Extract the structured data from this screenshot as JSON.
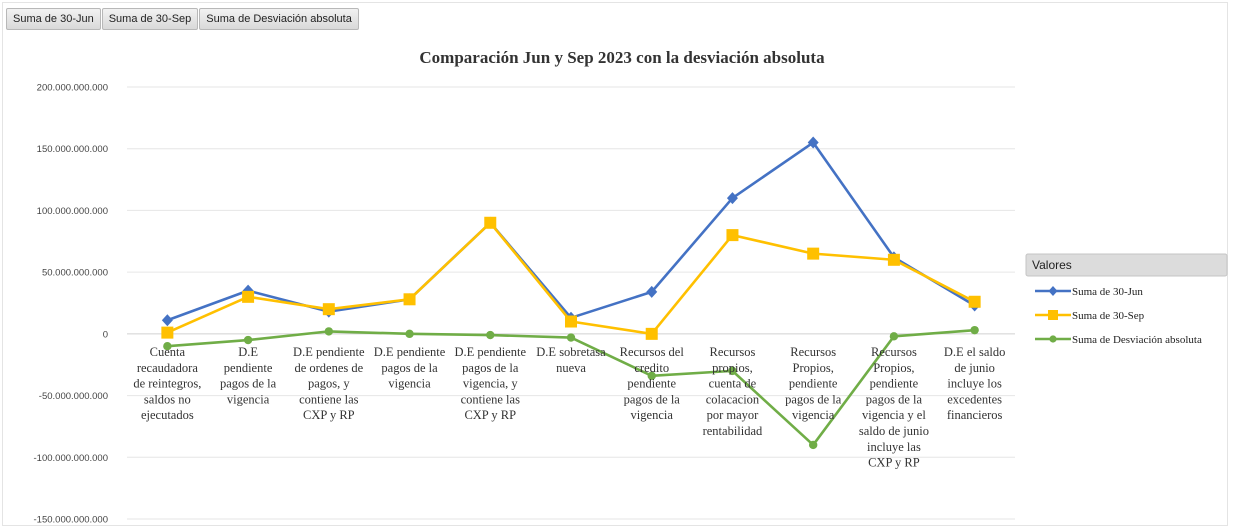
{
  "field_buttons": [
    {
      "label": "Suma de 30-Jun"
    },
    {
      "label": "Suma de 30-Sep"
    },
    {
      "label": "Suma de Desviación absoluta"
    }
  ],
  "chart_data": {
    "type": "line",
    "title": "Comparación  Jun y Sep  2023 con la desviación absoluta",
    "ylim": [
      -150000000000,
      200000000000
    ],
    "yticks": [
      {
        "value": 200000000000,
        "label": "200.000.000.000"
      },
      {
        "value": 150000000000,
        "label": "150.000.000.000"
      },
      {
        "value": 100000000000,
        "label": "100.000.000.000"
      },
      {
        "value": 50000000000,
        "label": "50.000.000.000"
      },
      {
        "value": 0,
        "label": "0"
      },
      {
        "value": -50000000000,
        "label": "-50.000.000.000"
      },
      {
        "value": -100000000000,
        "label": "-100.000.000.000"
      },
      {
        "value": -150000000000,
        "label": "-150.000.000.000"
      }
    ],
    "categories": [
      [
        "Cuenta",
        "recaudadora",
        "de reintegros,",
        "saldos no",
        "ejecutados"
      ],
      [
        "D.E",
        "pendiente",
        "pagos de la",
        "vigencia"
      ],
      [
        "D.E pendiente",
        "de ordenes de",
        "pagos, y",
        "contiene las",
        "CXP y RP"
      ],
      [
        "D.E pendiente",
        "pagos de la",
        "vigencia"
      ],
      [
        "D.E pendiente",
        "pagos de la",
        "vigencia, y",
        "contiene las",
        "CXP y RP"
      ],
      [
        "D.E sobretasa",
        "nueva"
      ],
      [
        "Recursos del",
        "credito",
        "pendiente",
        "pagos de la",
        "vigencia"
      ],
      [
        "Recursos",
        "propios,",
        "cuenta de",
        "colacacion",
        "por mayor",
        "rentabilidad"
      ],
      [
        "Recursos",
        "Propios,",
        "pendiente",
        "pagos de la",
        "vigencia"
      ],
      [
        "Recursos",
        "Propios,",
        "pendiente",
        "pagos de la",
        "vigencia y el",
        "saldo de junio",
        "incluye las",
        "CXP y RP"
      ],
      [
        "D.E el saldo",
        "de junio",
        "incluye los",
        "excedentes",
        "financieros"
      ]
    ],
    "legend_title": "Valores",
    "legend_position": "right",
    "grid": true,
    "series": [
      {
        "name": "Suma de 30-Jun",
        "color": "#4472c4",
        "marker": "diamond",
        "values": [
          11000000000,
          35000000000,
          18000000000,
          28000000000,
          90000000000,
          13000000000,
          34000000000,
          110000000000,
          155000000000,
          62000000000,
          23000000000
        ]
      },
      {
        "name": "Suma de 30-Sep",
        "color": "#ffc000",
        "marker": "square",
        "values": [
          1000000000,
          30000000000,
          20000000000,
          28000000000,
          90000000000,
          10000000000,
          0,
          80000000000,
          65000000000,
          60000000000,
          26000000000
        ]
      },
      {
        "name": "Suma de Desviación absoluta",
        "color": "#70ad47",
        "marker": "circle",
        "values": [
          -10000000000,
          -5000000000,
          2000000000,
          0,
          -1000000000,
          -3000000000,
          -34000000000,
          -30000000000,
          -90000000000,
          -2000000000,
          3000000000
        ]
      }
    ]
  }
}
